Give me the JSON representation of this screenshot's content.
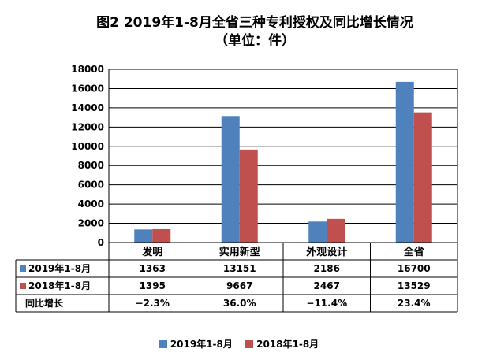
{
  "title": "图2 2019年1-8月全省三种专利授权及同比增长情况",
  "subtitle": "（单位：件）",
  "colors": {
    "s1": "#4F81BD",
    "s2": "#C0504D"
  },
  "chart_data": {
    "type": "bar",
    "title": "图2 2019年1-8月全省三种专利授权及同比增长情况",
    "subtitle": "（单位：件）",
    "categories": [
      "发明",
      "实用新型",
      "外观设计",
      "全省"
    ],
    "series": [
      {
        "name": "2019年1-8月",
        "values": [
          1363,
          13151,
          2186,
          16700
        ]
      },
      {
        "name": "2018年1-8月",
        "values": [
          1395,
          9667,
          2467,
          13529
        ]
      }
    ],
    "growth_label": "同比增长",
    "growth": [
      "−2.3%",
      "36.0%",
      "−11.4%",
      "23.4%"
    ],
    "ylim": [
      0,
      18000
    ],
    "yticks": [
      "0",
      "2000",
      "4000",
      "6000",
      "8000",
      "10000",
      "12000",
      "14000",
      "16000",
      "18000"
    ],
    "grid": true,
    "legend": "bottom",
    "data_table": true
  }
}
